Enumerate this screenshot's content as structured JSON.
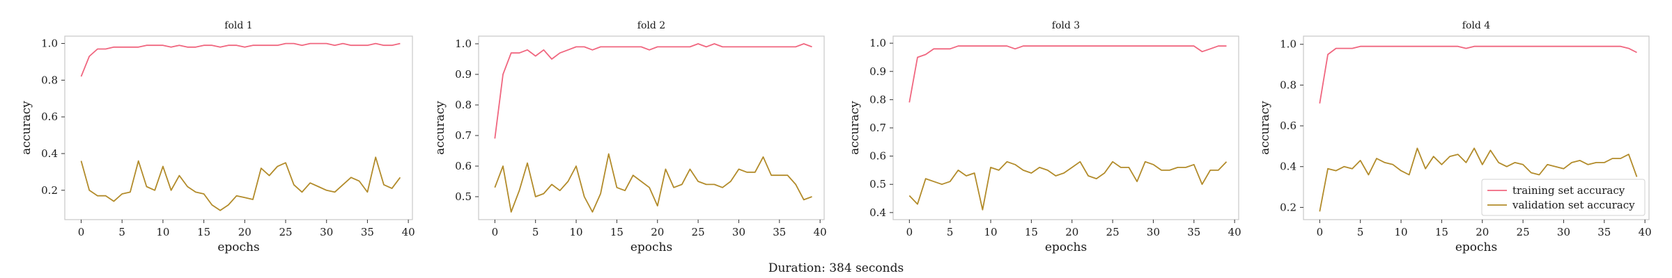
{
  "footer": "Duration: 384 seconds",
  "colors": {
    "train": "#f0667f",
    "val": "#b28b2a",
    "frame": "#c8c8c8",
    "text": "#1a1a1a"
  },
  "chart_data": [
    {
      "type": "line",
      "title": "fold 1",
      "xlabel": "epochs",
      "ylabel": "accuracy",
      "xlim": [
        -2,
        40.5
      ],
      "ylim": [
        0.04,
        1.04
      ],
      "xticks": [
        0,
        5,
        10,
        15,
        20,
        25,
        30,
        35,
        40
      ],
      "yticks": [
        0.2,
        0.4,
        0.6,
        0.8,
        1.0
      ],
      "ytick_labels": [
        "0.2",
        "0.4",
        "0.6",
        "0.8",
        "1.0"
      ],
      "grid": false,
      "legend": null,
      "x": [
        0,
        1,
        2,
        3,
        4,
        5,
        6,
        7,
        8,
        9,
        10,
        11,
        12,
        13,
        14,
        15,
        16,
        17,
        18,
        19,
        20,
        21,
        22,
        23,
        24,
        25,
        26,
        27,
        28,
        29,
        30,
        31,
        32,
        33,
        34,
        35,
        36,
        37,
        38,
        39
      ],
      "series": [
        {
          "name": "training set accuracy",
          "color_key": "train",
          "values": [
            0.82,
            0.93,
            0.97,
            0.97,
            0.98,
            0.98,
            0.98,
            0.98,
            0.99,
            0.99,
            0.99,
            0.98,
            0.99,
            0.98,
            0.98,
            0.99,
            0.99,
            0.98,
            0.99,
            0.99,
            0.98,
            0.99,
            0.99,
            0.99,
            0.99,
            1.0,
            1.0,
            0.99,
            1.0,
            1.0,
            1.0,
            0.99,
            1.0,
            0.99,
            0.99,
            0.99,
            1.0,
            0.99,
            0.99,
            1.0
          ]
        },
        {
          "name": "validation set accuracy",
          "color_key": "val",
          "values": [
            0.36,
            0.2,
            0.17,
            0.17,
            0.14,
            0.18,
            0.19,
            0.36,
            0.22,
            0.2,
            0.33,
            0.2,
            0.28,
            0.22,
            0.19,
            0.18,
            0.12,
            0.09,
            0.12,
            0.17,
            0.16,
            0.15,
            0.32,
            0.28,
            0.33,
            0.35,
            0.23,
            0.19,
            0.24,
            0.22,
            0.2,
            0.19,
            0.23,
            0.27,
            0.25,
            0.19,
            0.38,
            0.23,
            0.21,
            0.27
          ]
        }
      ]
    },
    {
      "type": "line",
      "title": "fold 2",
      "xlabel": "epochs",
      "ylabel": "accuracy",
      "xlim": [
        -2,
        40.5
      ],
      "ylim": [
        0.425,
        1.025
      ],
      "xticks": [
        0,
        5,
        10,
        15,
        20,
        25,
        30,
        35,
        40
      ],
      "yticks": [
        0.5,
        0.6,
        0.7,
        0.8,
        0.9,
        1.0
      ],
      "ytick_labels": [
        "0.5",
        "0.6",
        "0.7",
        "0.8",
        "0.9",
        "1.0"
      ],
      "grid": false,
      "legend": null,
      "x": [
        0,
        1,
        2,
        3,
        4,
        5,
        6,
        7,
        8,
        9,
        10,
        11,
        12,
        13,
        14,
        15,
        16,
        17,
        18,
        19,
        20,
        21,
        22,
        23,
        24,
        25,
        26,
        27,
        28,
        29,
        30,
        31,
        32,
        33,
        34,
        35,
        36,
        37,
        38,
        39
      ],
      "series": [
        {
          "name": "training set accuracy",
          "color_key": "train",
          "values": [
            0.69,
            0.9,
            0.97,
            0.97,
            0.98,
            0.96,
            0.98,
            0.95,
            0.97,
            0.98,
            0.99,
            0.99,
            0.98,
            0.99,
            0.99,
            0.99,
            0.99,
            0.99,
            0.99,
            0.98,
            0.99,
            0.99,
            0.99,
            0.99,
            0.99,
            1.0,
            0.99,
            1.0,
            0.99,
            0.99,
            0.99,
            0.99,
            0.99,
            0.99,
            0.99,
            0.99,
            0.99,
            0.99,
            1.0,
            0.99
          ]
        },
        {
          "name": "validation set accuracy",
          "color_key": "val",
          "values": [
            0.53,
            0.6,
            0.45,
            0.52,
            0.61,
            0.5,
            0.51,
            0.54,
            0.52,
            0.55,
            0.6,
            0.5,
            0.45,
            0.51,
            0.64,
            0.53,
            0.52,
            0.57,
            0.55,
            0.53,
            0.47,
            0.59,
            0.53,
            0.54,
            0.59,
            0.55,
            0.54,
            0.54,
            0.53,
            0.55,
            0.59,
            0.58,
            0.58,
            0.63,
            0.57,
            0.57,
            0.57,
            0.54,
            0.49,
            0.5
          ]
        }
      ]
    },
    {
      "type": "line",
      "title": "fold 3",
      "xlabel": "epochs",
      "ylabel": "accuracy",
      "xlim": [
        -2,
        40.5
      ],
      "ylim": [
        0.375,
        1.025
      ],
      "xticks": [
        0,
        5,
        10,
        15,
        20,
        25,
        30,
        35,
        40
      ],
      "yticks": [
        0.4,
        0.5,
        0.6,
        0.7,
        0.8,
        0.9,
        1.0
      ],
      "ytick_labels": [
        "0.4",
        "0.5",
        "0.6",
        "0.7",
        "0.8",
        "0.9",
        "1.0"
      ],
      "grid": false,
      "legend": null,
      "x": [
        0,
        1,
        2,
        3,
        4,
        5,
        6,
        7,
        8,
        9,
        10,
        11,
        12,
        13,
        14,
        15,
        16,
        17,
        18,
        19,
        20,
        21,
        22,
        23,
        24,
        25,
        26,
        27,
        28,
        29,
        30,
        31,
        32,
        33,
        34,
        35,
        36,
        37,
        38,
        39
      ],
      "series": [
        {
          "name": "training set accuracy",
          "color_key": "train",
          "values": [
            0.79,
            0.95,
            0.96,
            0.98,
            0.98,
            0.98,
            0.99,
            0.99,
            0.99,
            0.99,
            0.99,
            0.99,
            0.99,
            0.98,
            0.99,
            0.99,
            0.99,
            0.99,
            0.99,
            0.99,
            0.99,
            0.99,
            0.99,
            0.99,
            0.99,
            0.99,
            0.99,
            0.99,
            0.99,
            0.99,
            0.99,
            0.99,
            0.99,
            0.99,
            0.99,
            0.99,
            0.97,
            0.98,
            0.99,
            0.99
          ]
        },
        {
          "name": "validation set accuracy",
          "color_key": "val",
          "values": [
            0.46,
            0.43,
            0.52,
            0.51,
            0.5,
            0.51,
            0.55,
            0.53,
            0.54,
            0.41,
            0.56,
            0.55,
            0.58,
            0.57,
            0.55,
            0.54,
            0.56,
            0.55,
            0.53,
            0.54,
            0.56,
            0.58,
            0.53,
            0.52,
            0.54,
            0.58,
            0.56,
            0.56,
            0.51,
            0.58,
            0.57,
            0.55,
            0.55,
            0.56,
            0.56,
            0.57,
            0.5,
            0.55,
            0.55,
            0.58
          ]
        }
      ]
    },
    {
      "type": "line",
      "title": "fold 4",
      "xlabel": "epochs",
      "ylabel": "accuracy",
      "xlim": [
        -2,
        40.5
      ],
      "ylim": [
        0.14,
        1.04
      ],
      "xticks": [
        0,
        5,
        10,
        15,
        20,
        25,
        30,
        35,
        40
      ],
      "yticks": [
        0.2,
        0.4,
        0.6,
        0.8,
        1.0
      ],
      "ytick_labels": [
        "0.2",
        "0.4",
        "0.6",
        "0.8",
        "1.0"
      ],
      "grid": false,
      "legend": "lower right",
      "x": [
        0,
        1,
        2,
        3,
        4,
        5,
        6,
        7,
        8,
        9,
        10,
        11,
        12,
        13,
        14,
        15,
        16,
        17,
        18,
        19,
        20,
        21,
        22,
        23,
        24,
        25,
        26,
        27,
        28,
        29,
        30,
        31,
        32,
        33,
        34,
        35,
        36,
        37,
        38,
        39
      ],
      "series": [
        {
          "name": "training set accuracy",
          "color_key": "train",
          "values": [
            0.71,
            0.95,
            0.98,
            0.98,
            0.98,
            0.99,
            0.99,
            0.99,
            0.99,
            0.99,
            0.99,
            0.99,
            0.99,
            0.99,
            0.99,
            0.99,
            0.99,
            0.99,
            0.98,
            0.99,
            0.99,
            0.99,
            0.99,
            0.99,
            0.99,
            0.99,
            0.99,
            0.99,
            0.99,
            0.99,
            0.99,
            0.99,
            0.99,
            0.99,
            0.99,
            0.99,
            0.99,
            0.99,
            0.98,
            0.96
          ]
        },
        {
          "name": "validation set accuracy",
          "color_key": "val",
          "values": [
            0.18,
            0.39,
            0.38,
            0.4,
            0.39,
            0.43,
            0.36,
            0.44,
            0.42,
            0.41,
            0.38,
            0.36,
            0.49,
            0.39,
            0.45,
            0.41,
            0.45,
            0.46,
            0.42,
            0.49,
            0.41,
            0.48,
            0.42,
            0.4,
            0.42,
            0.41,
            0.37,
            0.36,
            0.41,
            0.4,
            0.39,
            0.42,
            0.43,
            0.41,
            0.42,
            0.42,
            0.44,
            0.44,
            0.46,
            0.35
          ]
        }
      ]
    }
  ]
}
